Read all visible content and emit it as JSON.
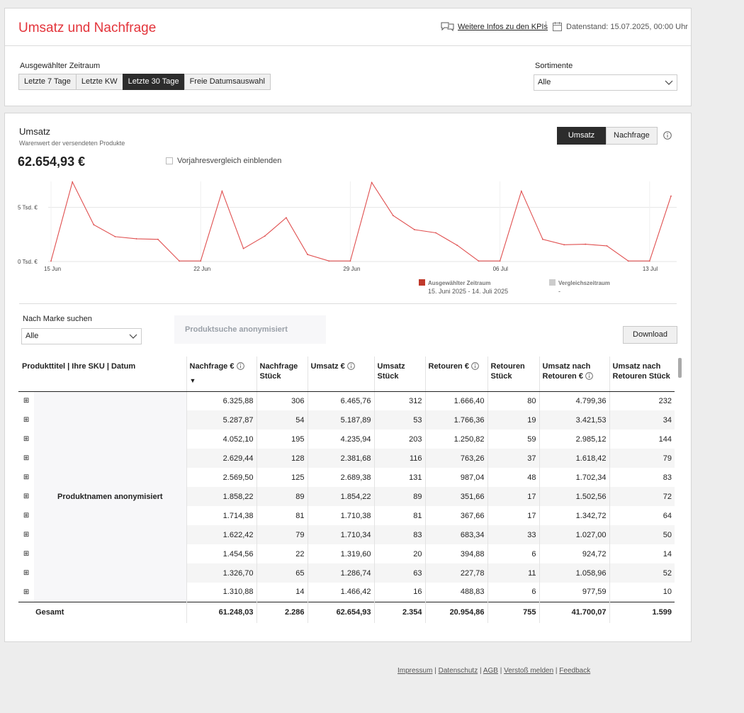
{
  "header": {
    "title": "Umsatz und Nachfrage",
    "kpi_link": "Weitere Infos zu den KPIs",
    "datestand": "Datenstand: 15.07.2025, 00:00 Uhr"
  },
  "filters": {
    "period_label": "Ausgewählter Zeitraum",
    "periods": [
      "Letzte 7 Tage",
      "Letzte KW",
      "Letzte 30 Tage",
      "Freie Datumsauswahl"
    ],
    "active_period": 2,
    "assortment_label": "Sortimente",
    "assortment_value": "Alle"
  },
  "main": {
    "title": "Umsatz",
    "subtitle": "Warenwert der versendeten Produkte",
    "total": "62.654,93 €",
    "compare_checkbox": "Vorjahresvergleich einblenden",
    "toggle": [
      "Umsatz",
      "Nachfrage"
    ],
    "toggle_active": 0
  },
  "chart_data": {
    "type": "line",
    "color": "#e05050",
    "ylim": [
      0,
      7.4
    ],
    "ytick_values": [
      0,
      5
    ],
    "ytick_labels": [
      "0 Tsd. €",
      "5 Tsd. €"
    ],
    "xtick_indices": [
      0,
      7,
      14,
      21,
      28
    ],
    "xtick_labels": [
      "15 Jun",
      "22 Jun",
      "29 Jun",
      "06 Jul",
      "13 Jul"
    ],
    "values": [
      0.05,
      7.35,
      3.4,
      2.3,
      2.1,
      2.05,
      0.05,
      0.05,
      6.5,
      1.2,
      2.35,
      4.05,
      0.65,
      0.05,
      0.05,
      7.3,
      4.25,
      2.95,
      2.65,
      1.5,
      0.05,
      0.05,
      6.5,
      2.05,
      1.55,
      1.6,
      1.45,
      0.05,
      0.05,
      6.05
    ],
    "legend": [
      {
        "name": "Ausgewählter Zeitraum",
        "range": "15. Juni 2025 - 14. Juli 2025",
        "color": "#c0392b"
      },
      {
        "name": "Vergleichszeitraum",
        "range": "-",
        "color": "#cccccc"
      }
    ]
  },
  "brand": {
    "label": "Nach Marke suchen",
    "value": "Alle",
    "product_search": "Produktsuche anonymisiert",
    "download": "Download"
  },
  "table": {
    "headers": [
      "Produkttitel | Ihre SKU | Datum",
      "Nachfrage €",
      "Nachfrage Stück",
      "Umsatz €",
      "Umsatz Stück",
      "Retouren €",
      "Retouren Stück",
      "Umsatz nach Retouren €",
      "Umsatz nach Retouren Stück"
    ],
    "product_placeholder": "Produktnamen anonymisiert",
    "rows": [
      [
        "6.325,88",
        "306",
        "6.465,76",
        "312",
        "1.666,40",
        "80",
        "4.799,36",
        "232"
      ],
      [
        "5.287,87",
        "54",
        "5.187,89",
        "53",
        "1.766,36",
        "19",
        "3.421,53",
        "34"
      ],
      [
        "4.052,10",
        "195",
        "4.235,94",
        "203",
        "1.250,82",
        "59",
        "2.985,12",
        "144"
      ],
      [
        "2.629,44",
        "128",
        "2.381,68",
        "116",
        "763,26",
        "37",
        "1.618,42",
        "79"
      ],
      [
        "2.569,50",
        "125",
        "2.689,38",
        "131",
        "987,04",
        "48",
        "1.702,34",
        "83"
      ],
      [
        "1.858,22",
        "89",
        "1.854,22",
        "89",
        "351,66",
        "17",
        "1.502,56",
        "72"
      ],
      [
        "1.714,38",
        "81",
        "1.710,38",
        "81",
        "367,66",
        "17",
        "1.342,72",
        "64"
      ],
      [
        "1.622,42",
        "79",
        "1.710,34",
        "83",
        "683,34",
        "33",
        "1.027,00",
        "50"
      ],
      [
        "1.454,56",
        "22",
        "1.319,60",
        "20",
        "394,88",
        "6",
        "924,72",
        "14"
      ],
      [
        "1.326,70",
        "65",
        "1.286,74",
        "63",
        "227,78",
        "11",
        "1.058,96",
        "52"
      ],
      [
        "1.310,88",
        "14",
        "1.466,42",
        "16",
        "488,83",
        "6",
        "977,59",
        "10"
      ]
    ],
    "total_label": "Gesamt",
    "totals": [
      "61.248,03",
      "2.286",
      "62.654,93",
      "2.354",
      "20.954,86",
      "755",
      "41.700,07",
      "1.599"
    ]
  },
  "footer": {
    "links": [
      "Impressum",
      "Datenschutz",
      "AGB",
      "Verstoß melden",
      "Feedback"
    ]
  }
}
